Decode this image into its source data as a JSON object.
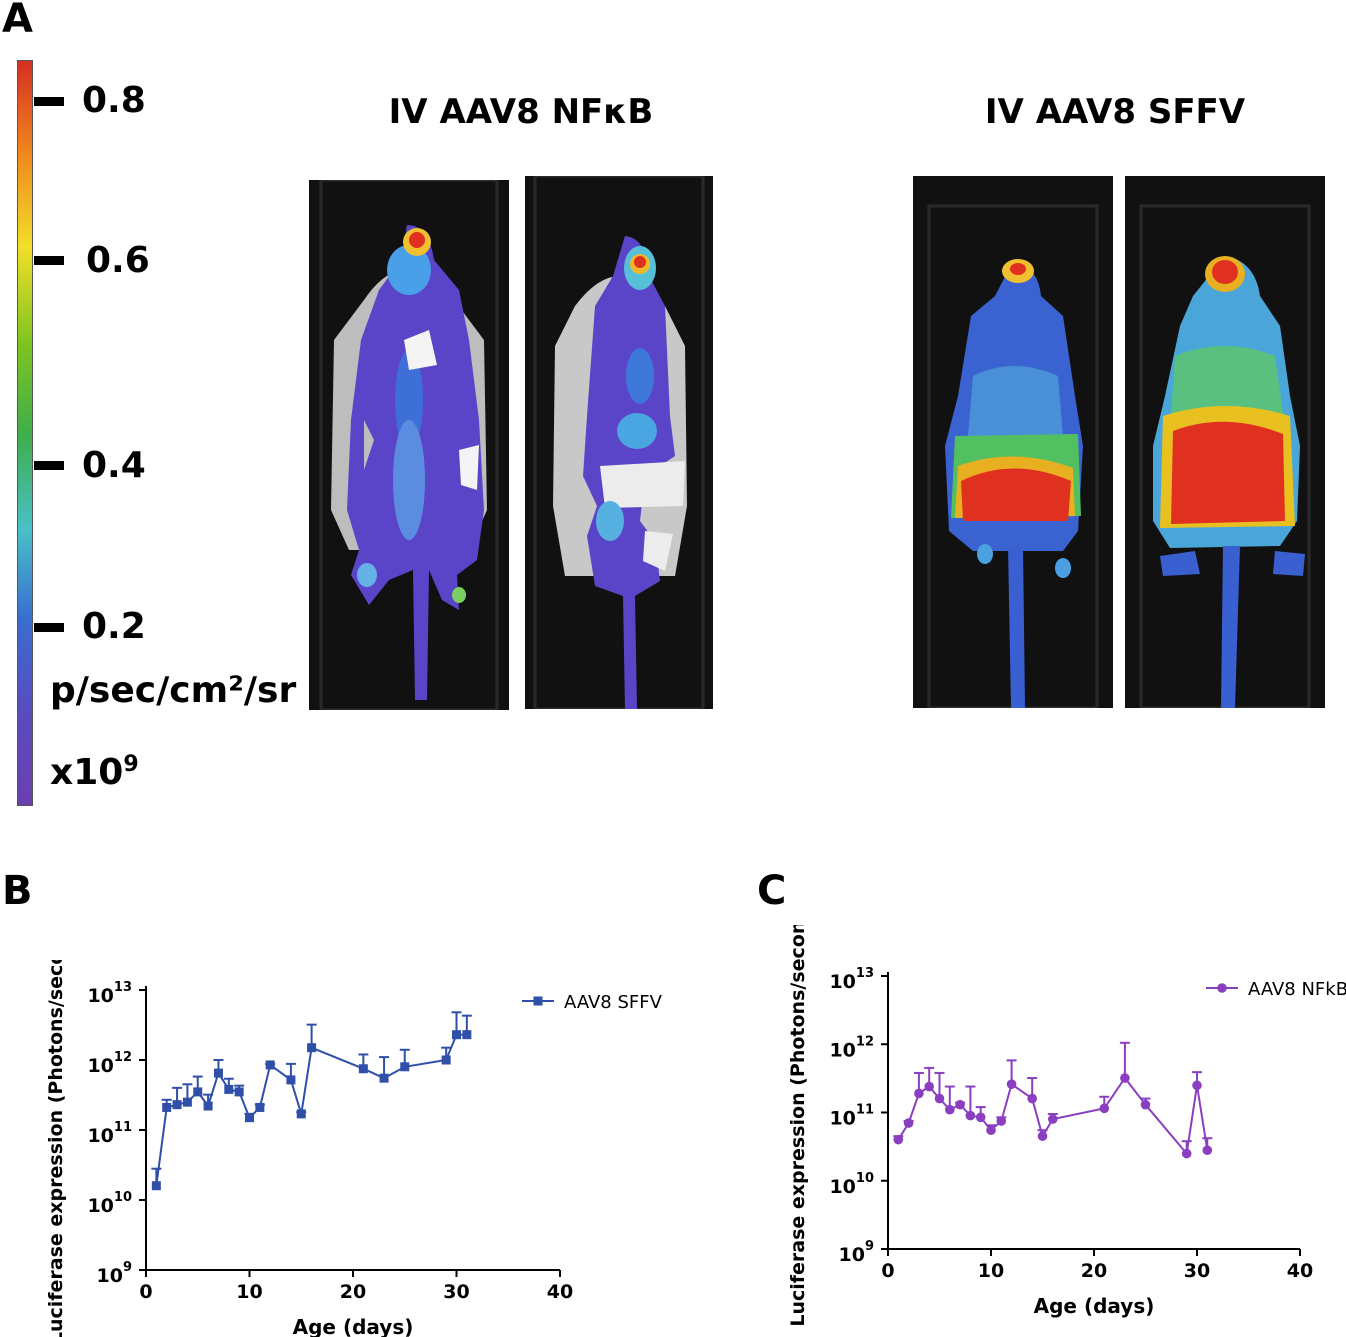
{
  "panels": {
    "a": "A",
    "b": "B",
    "c": "C"
  },
  "colorbar": {
    "ticks": [
      "0.8",
      "0.6",
      "0.4",
      "0.2"
    ],
    "unit": "p/sec/cm²/sr",
    "scale_base": "x10",
    "scale_exp": "9",
    "colors": [
      "#d62f22",
      "#f08b1e",
      "#f2df2a",
      "#7fc420",
      "#3fae4a",
      "#49c0c8",
      "#3a6dd0",
      "#5a4bbf",
      "#6b3fb0"
    ]
  },
  "groups": {
    "nfkb_title": "IV AAV8 NFκB",
    "sffv_title": "IV AAV8 SFFV"
  },
  "chart_data": [
    {
      "type": "line",
      "panel": "B",
      "xlabel": "Age (days)",
      "ylabel": "Luciferase expression (Photons/second)",
      "xlim": [
        0,
        40
      ],
      "xticks": [
        "0",
        "10",
        "20",
        "30",
        "40"
      ],
      "yscale": "log",
      "ylim": [
        1000000000.0,
        10000000000000.0
      ],
      "yticks": [
        {
          "base": "10",
          "exp": "9"
        },
        {
          "base": "10",
          "exp": "10"
        },
        {
          "base": "10",
          "exp": "11"
        },
        {
          "base": "10",
          "exp": "12"
        },
        {
          "base": "10",
          "exp": "13"
        }
      ],
      "legend": "top-right",
      "grid": false,
      "series": [
        {
          "name": "AAV8 SFFV",
          "color": "#2f4fa8",
          "marker": "square",
          "x": [
            1,
            2,
            3,
            4,
            5,
            6,
            7,
            8,
            9,
            10,
            11,
            12,
            14,
            15,
            16,
            21,
            23,
            25,
            29,
            30,
            31
          ],
          "y": [
            16000000000.0,
            210000000000.0,
            230000000000.0,
            250000000000.0,
            350000000000.0,
            220000000000.0,
            650000000000.0,
            380000000000.0,
            350000000000.0,
            150000000000.0,
            210000000000.0,
            850000000000.0,
            520000000000.0,
            170000000000.0,
            1500000000000.0,
            750000000000.0,
            550000000000.0,
            800000000000.0,
            1000000000000.0,
            2300000000000.0,
            2300000000000.0
          ],
          "err_upper": [
            28000000000.0,
            270000000000.0,
            400000000000.0,
            450000000000.0,
            580000000000.0,
            320000000000.0,
            1000000000000.0,
            540000000000.0,
            430000000000.0,
            170000000000.0,
            230000000000.0,
            880000000000.0,
            880000000000.0,
            180000000000.0,
            3200000000000.0,
            1200000000000.0,
            1100000000000.0,
            1400000000000.0,
            1500000000000.0,
            4800000000000.0,
            4300000000000.0
          ]
        }
      ]
    },
    {
      "type": "line",
      "panel": "C",
      "xlabel": "Age (days)",
      "ylabel": "Luciferase expression (Photons/second)",
      "xlim": [
        0,
        40
      ],
      "xticks": [
        "0",
        "10",
        "20",
        "30",
        "40"
      ],
      "yscale": "log",
      "ylim": [
        1000000000.0,
        10000000000000.0
      ],
      "yticks": [
        {
          "base": "10",
          "exp": "9"
        },
        {
          "base": "10",
          "exp": "10"
        },
        {
          "base": "10",
          "exp": "11"
        },
        {
          "base": "10",
          "exp": "12"
        },
        {
          "base": "10",
          "exp": "13"
        }
      ],
      "legend": "top-right",
      "grid": false,
      "series": [
        {
          "name": "AAV8 NFkB",
          "color": "#8a3fc0",
          "marker": "circle",
          "x": [
            1,
            2,
            3,
            4,
            5,
            6,
            7,
            8,
            9,
            10,
            11,
            12,
            14,
            15,
            16,
            21,
            23,
            25,
            29,
            30,
            31
          ],
          "y": [
            40000000000.0,
            70000000000.0,
            190000000000.0,
            240000000000.0,
            160000000000.0,
            110000000000.0,
            130000000000.0,
            90000000000.0,
            85000000000.0,
            55000000000.0,
            75000000000.0,
            260000000000.0,
            160000000000.0,
            45000000000.0,
            80000000000.0,
            115000000000.0,
            320000000000.0,
            130000000000.0,
            25000000000.0,
            250000000000.0,
            28000000000.0
          ],
          "err_upper": [
            45000000000.0,
            75000000000.0,
            380000000000.0,
            450000000000.0,
            380000000000.0,
            240000000000.0,
            140000000000.0,
            240000000000.0,
            120000000000.0,
            65000000000.0,
            85000000000.0,
            580000000000.0,
            320000000000.0,
            55000000000.0,
            95000000000.0,
            170000000000.0,
            1050000000000.0,
            160000000000.0,
            38000000000.0,
            390000000000.0,
            42000000000.0
          ]
        }
      ]
    }
  ]
}
